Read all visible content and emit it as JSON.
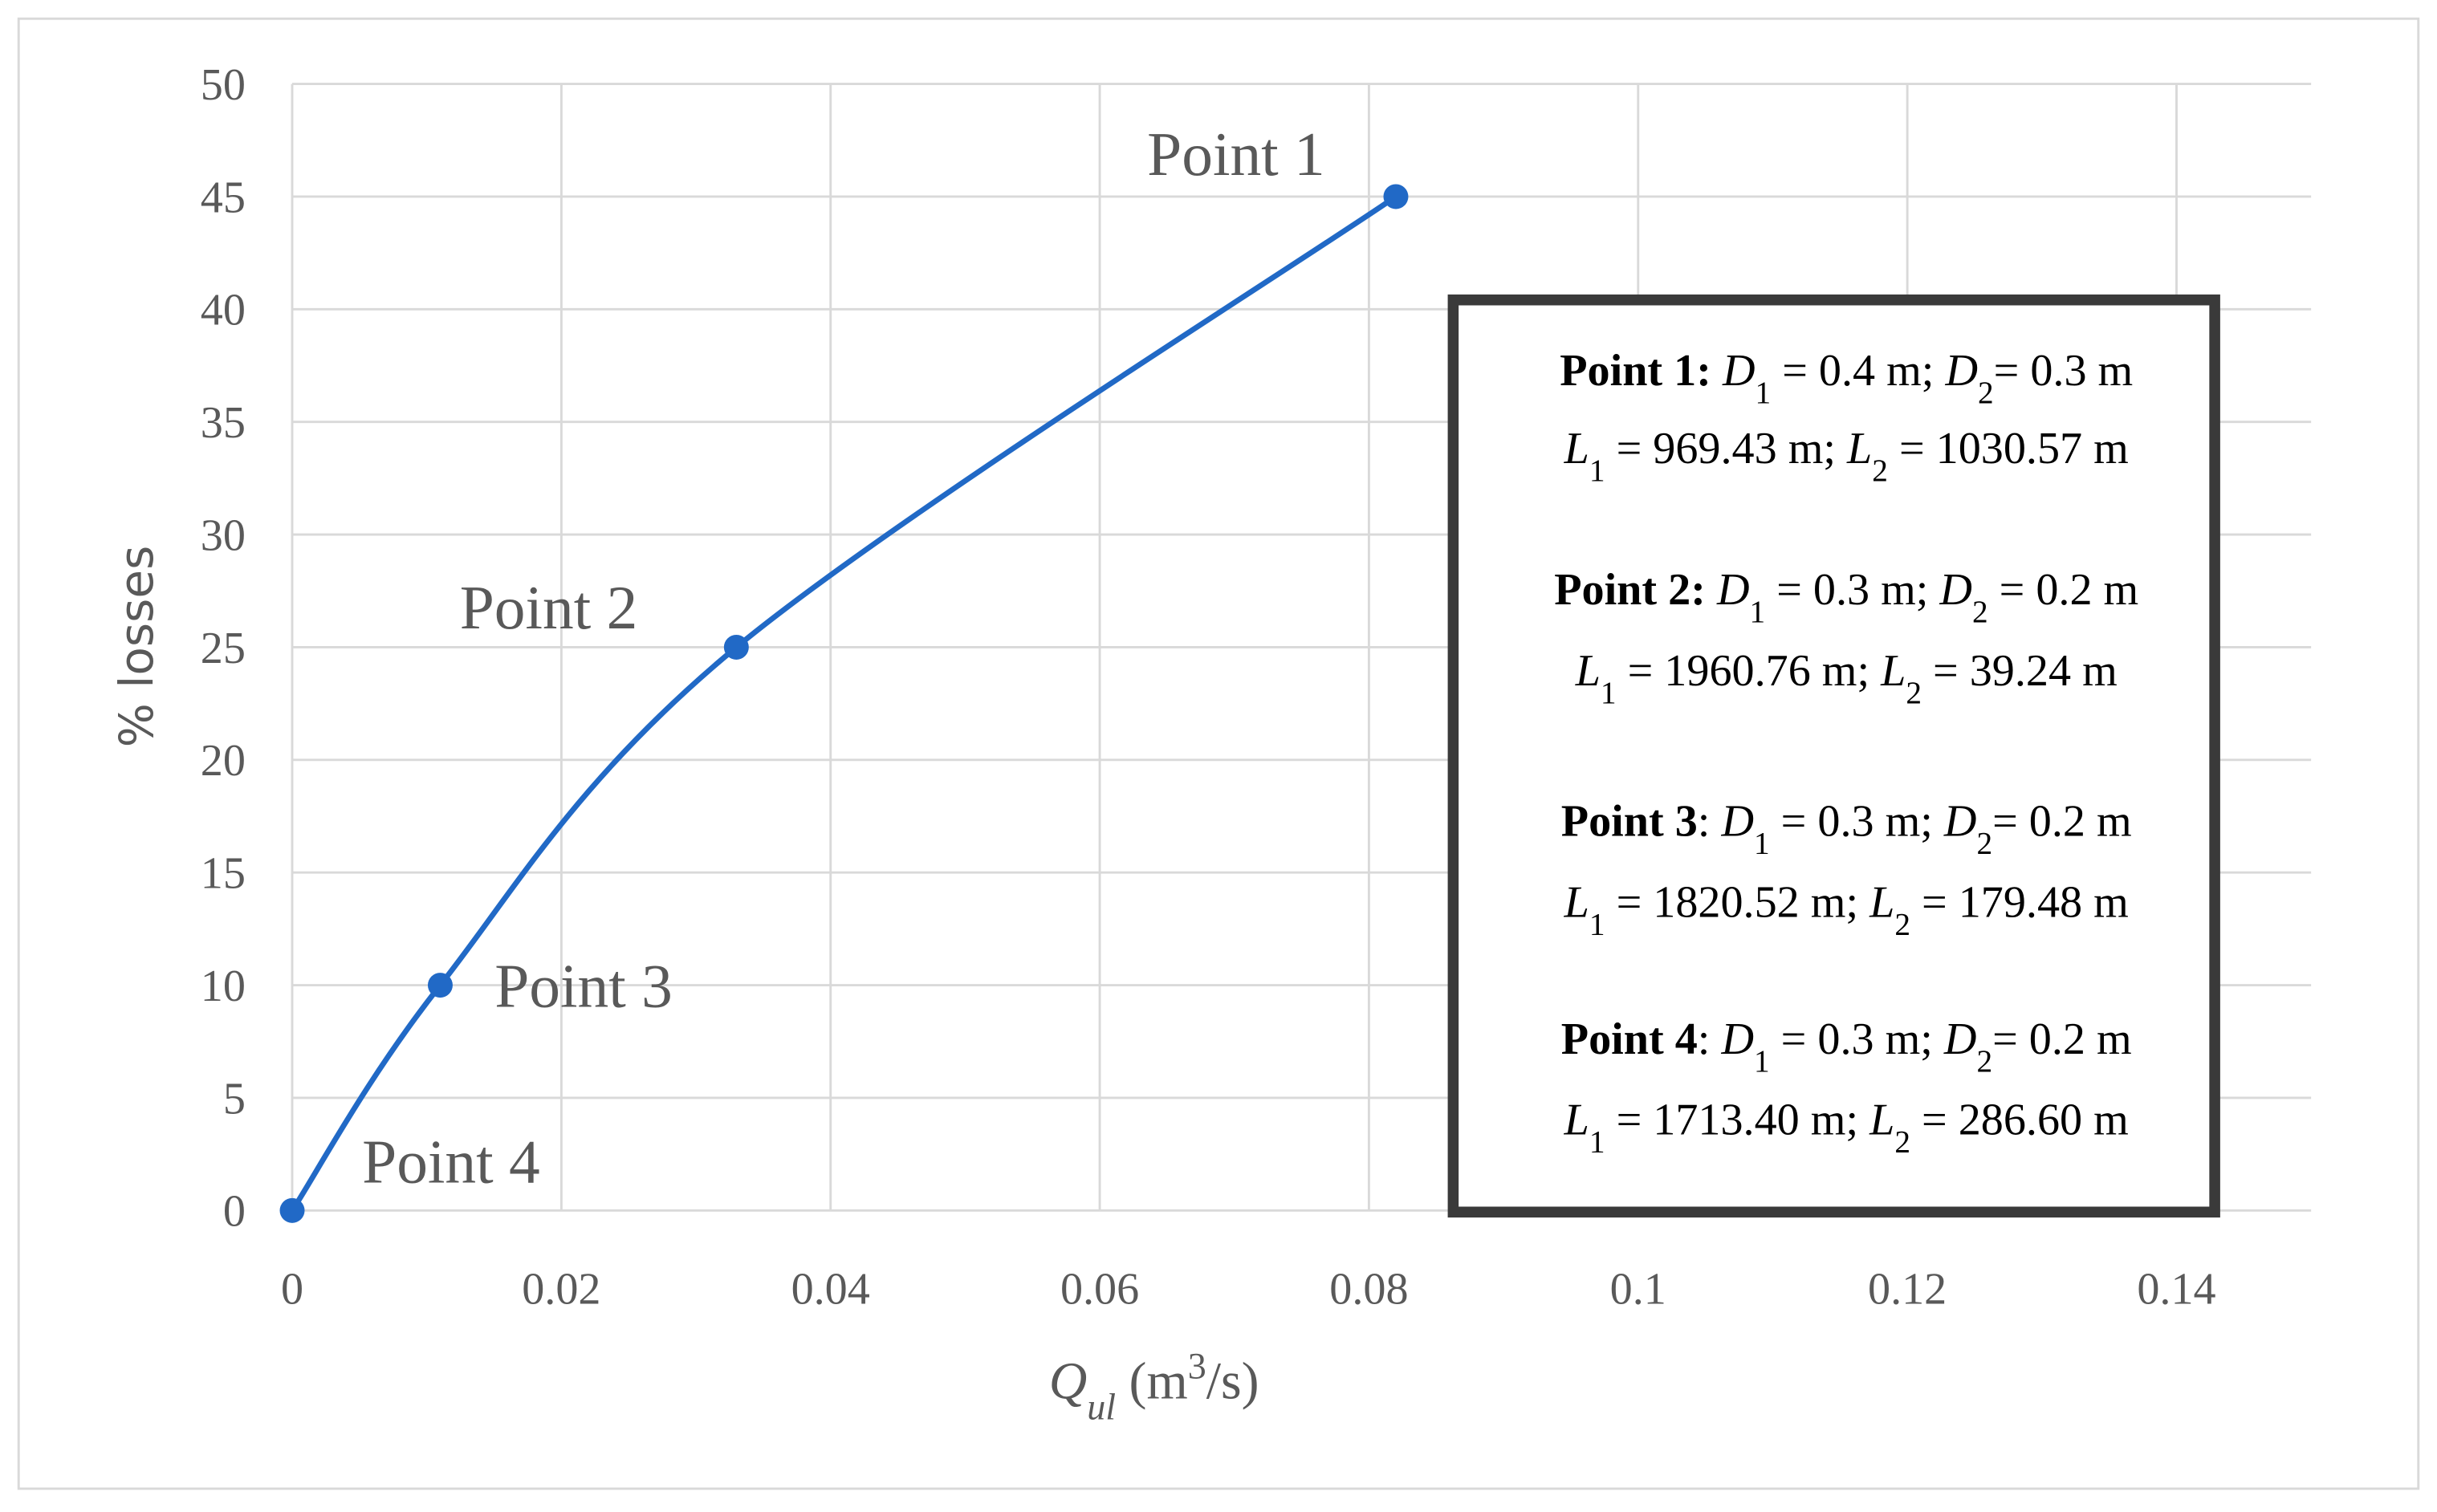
{
  "chart_data": {
    "type": "line",
    "y_label": "% losses",
    "x_label": [
      {
        "text": "Q",
        "style": "italic"
      },
      {
        "text": "ul",
        "style": "italic-sub"
      },
      {
        "text": " (m"
      },
      {
        "text": "3",
        "style": "sup"
      },
      {
        "text": "/s)"
      }
    ],
    "series": [
      {
        "color": "#2169c6",
        "x": [
          0,
          0.011,
          0.033,
          0.082
        ],
        "values": [
          0,
          10,
          25,
          45
        ],
        "point_labels": [
          "Point 4",
          "Point 3",
          "Point 2",
          "Point 1"
        ]
      }
    ],
    "xlim": [
      0,
      0.15
    ],
    "xticks": [
      0,
      0.02,
      0.04,
      0.06,
      0.08,
      0.1,
      0.12,
      0.14
    ],
    "ylim": [
      0,
      50
    ],
    "yticks": [
      0,
      5,
      10,
      15,
      20,
      25,
      30,
      35,
      40,
      45,
      50
    ],
    "grid": true,
    "info_box": [
      [
        {
          "text": "Point 1:",
          "style": "bold"
        },
        {
          "text": " "
        },
        {
          "text": "D",
          "style": "italic"
        },
        {
          "text": "1",
          "style": "sub"
        },
        {
          "text": " = 0.4 m; "
        },
        {
          "text": "D",
          "style": "italic"
        },
        {
          "text": "2",
          "style": "sub"
        },
        {
          "text": "= 0.3 m"
        }
      ],
      [
        {
          "text": "L",
          "style": "italic"
        },
        {
          "text": "1",
          "style": "sub"
        },
        {
          "text": " = 969.43 m; "
        },
        {
          "text": "L",
          "style": "italic"
        },
        {
          "text": "2",
          "style": "sub"
        },
        {
          "text": " = 1030.57 m"
        }
      ],
      [
        {
          "text": "Point 2:",
          "style": "bold"
        },
        {
          "text": " "
        },
        {
          "text": "D",
          "style": "italic"
        },
        {
          "text": "1",
          "style": "sub"
        },
        {
          "text": " = 0.3 m; "
        },
        {
          "text": "D",
          "style": "italic"
        },
        {
          "text": "2",
          "style": "sub"
        },
        {
          "text": " = 0.2 m"
        }
      ],
      [
        {
          "text": "L",
          "style": "italic"
        },
        {
          "text": "1",
          "style": "sub"
        },
        {
          "text": " = 1960.76 m; "
        },
        {
          "text": "L",
          "style": "italic"
        },
        {
          "text": "2",
          "style": "sub"
        },
        {
          "text": " = 39.24 m"
        }
      ],
      [
        {
          "text": "Point 3",
          "style": "bold"
        },
        {
          "text": ": "
        },
        {
          "text": "D",
          "style": "italic"
        },
        {
          "text": "1",
          "style": "sub"
        },
        {
          "text": " = 0.3 m; "
        },
        {
          "text": "D",
          "style": "italic"
        },
        {
          "text": "2",
          "style": "sub"
        },
        {
          "text": "= 0.2 m"
        }
      ],
      [
        {
          "text": "L",
          "style": "italic"
        },
        {
          "text": "1",
          "style": "sub"
        },
        {
          "text": " = 1820.52 m; "
        },
        {
          "text": "L",
          "style": "italic"
        },
        {
          "text": "2",
          "style": "sub"
        },
        {
          "text": " = 179.48 m"
        }
      ],
      [
        {
          "text": "Point 4",
          "style": "bold"
        },
        {
          "text": ": "
        },
        {
          "text": "D",
          "style": "italic"
        },
        {
          "text": "1",
          "style": "sub"
        },
        {
          "text": " = 0.3 m; "
        },
        {
          "text": "D",
          "style": "italic"
        },
        {
          "text": "2",
          "style": "sub"
        },
        {
          "text": "= 0.2 m"
        }
      ],
      [
        {
          "text": "L",
          "style": "italic"
        },
        {
          "text": "1",
          "style": "sub"
        },
        {
          "text": " = 1713.40 m; "
        },
        {
          "text": "L",
          "style": "italic"
        },
        {
          "text": "2",
          "style": "sub"
        },
        {
          "text": " = 286.60 m"
        }
      ]
    ]
  }
}
